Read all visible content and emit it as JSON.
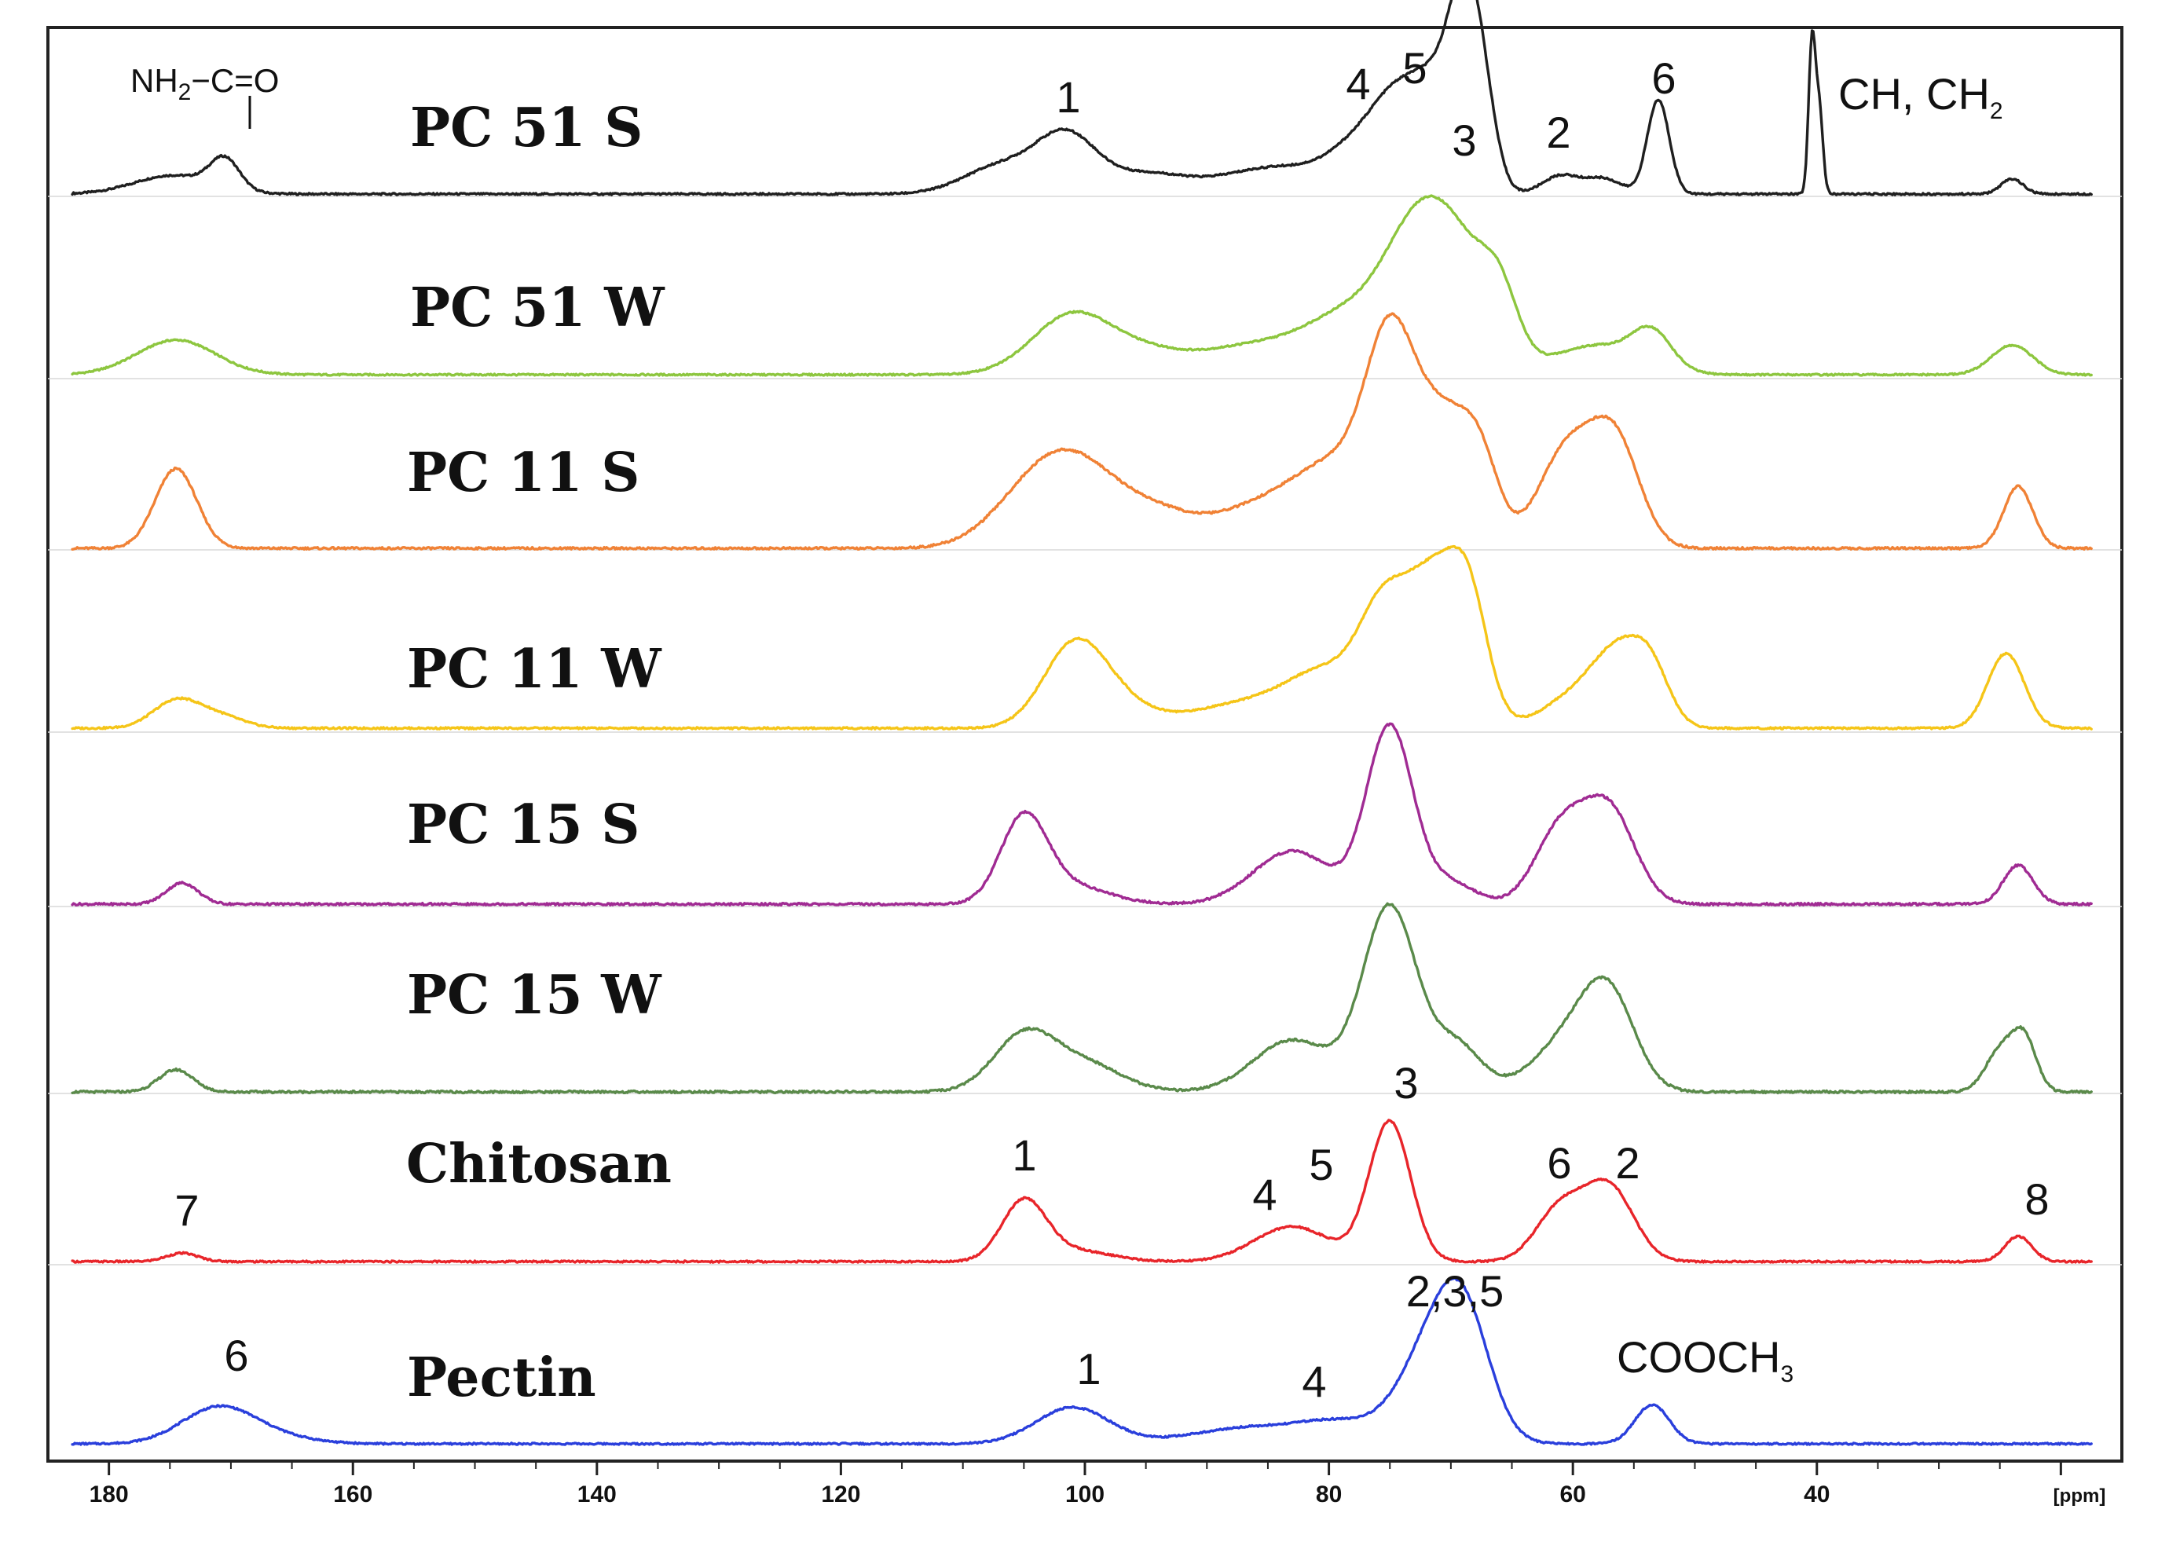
{
  "chart_data": {
    "type": "line",
    "title": "",
    "xlabel": "[ppm]",
    "xlim": [
      185,
      15
    ],
    "x_reversed": true,
    "x_ticks": [
      180,
      160,
      140,
      120,
      100,
      80,
      60,
      40
    ],
    "tick_labels": [
      "180",
      "160",
      "140",
      "120",
      "100",
      "80",
      "60",
      "40"
    ],
    "stacked": true,
    "grid": false,
    "series": [
      {
        "name": "PC 51 S",
        "color": "#1f1f1f",
        "peaks": [
          [
            176,
            0.05,
            3
          ],
          [
            170.5,
            0.2,
            1.2
          ],
          [
            174,
            0.08,
            3
          ],
          [
            107,
            0.18,
            3
          ],
          [
            101.5,
            0.38,
            2.5
          ],
          [
            95,
            0.12,
            3
          ],
          [
            84,
            0.18,
            5
          ],
          [
            77,
            0.3,
            2.5
          ],
          [
            74.5,
            0.38,
            1.8
          ],
          [
            71.5,
            0.62,
            1.8
          ],
          [
            69,
            1.0,
            1.3
          ],
          [
            67.5,
            0.55,
            1.2
          ],
          [
            61,
            0.12,
            1.5
          ],
          [
            57.5,
            0.1,
            1.5
          ],
          [
            53,
            0.62,
            0.9
          ],
          [
            40.4,
            1.0,
            0.28
          ],
          [
            39.8,
            0.55,
            0.3
          ],
          [
            24,
            0.1,
            0.9
          ]
        ],
        "labels": [
          {
            "text": "1",
            "x": 101,
            "key": "l1"
          },
          {
            "text": "4",
            "x": 77,
            "key": "l4"
          },
          {
            "text": "5",
            "x": 72.5,
            "key": "l5"
          },
          {
            "text": "3",
            "x": 68.5,
            "key": "l3"
          },
          {
            "text": "2",
            "x": 60.5,
            "key": "l2"
          },
          {
            "text": "6",
            "x": 53,
            "key": "l6"
          }
        ],
        "extra_labels": {
          "ch_ch2": "CH, CH",
          "ch_ch2_sub": "2",
          "amide_nh": "NH",
          "amide_nh_sub": "2",
          "amide_bond": "−C=O"
        }
      },
      {
        "name": "PC 51 W",
        "color": "#8dc63f",
        "peaks": [
          [
            174.5,
            0.26,
            3.2
          ],
          [
            101,
            0.45,
            3.3
          ],
          [
            95,
            0.12,
            3
          ],
          [
            86,
            0.22,
            5
          ],
          [
            78,
            0.4,
            3.5
          ],
          [
            73.5,
            0.52,
            2.5
          ],
          [
            70,
            1.0,
            3.0
          ],
          [
            66,
            0.4,
            1.5
          ],
          [
            58,
            0.22,
            3.5
          ],
          [
            53.5,
            0.26,
            1.6
          ],
          [
            24,
            0.22,
            1.7
          ]
        ],
        "labels": []
      },
      {
        "name": "PC 11 S",
        "color": "#f08236",
        "peaks": [
          [
            174.5,
            0.45,
            1.7
          ],
          [
            104,
            0.3,
            3.5
          ],
          [
            100,
            0.35,
            3.5
          ],
          [
            94,
            0.14,
            3
          ],
          [
            84,
            0.28,
            5
          ],
          [
            79,
            0.3,
            3
          ],
          [
            75,
            1.0,
            2.0
          ],
          [
            70.5,
            0.72,
            2.5
          ],
          [
            67.5,
            0.3,
            1.5
          ],
          [
            60.5,
            0.55,
            2.3
          ],
          [
            56.5,
            0.58,
            2.0
          ],
          [
            23.5,
            0.35,
            1.2
          ]
        ],
        "labels": []
      },
      {
        "name": "PC 11 W",
        "color": "#f5c518",
        "peaks": [
          [
            174.5,
            0.18,
            1.9
          ],
          [
            171,
            0.08,
            2
          ],
          [
            101,
            0.48,
            2.5
          ],
          [
            98,
            0.18,
            3
          ],
          [
            86,
            0.18,
            5
          ],
          [
            80,
            0.3,
            3
          ],
          [
            75.5,
            0.7,
            2.0
          ],
          [
            71.5,
            0.92,
            2.1
          ],
          [
            68.5,
            0.75,
            1.6
          ],
          [
            59,
            0.25,
            3
          ],
          [
            56,
            0.38,
            2.0
          ],
          [
            53.5,
            0.3,
            1.5
          ],
          [
            24.5,
            0.5,
            1.5
          ]
        ],
        "labels": []
      },
      {
        "name": "PC 15 S",
        "color": "#a02b93",
        "peaks": [
          [
            174,
            0.12,
            1.3
          ],
          [
            105,
            0.48,
            1.9
          ],
          [
            101,
            0.1,
            3
          ],
          [
            83,
            0.3,
            3.2
          ],
          [
            75,
            1.0,
            1.9
          ],
          [
            70,
            0.12,
            2
          ],
          [
            61,
            0.42,
            2.1
          ],
          [
            57,
            0.52,
            2.1
          ],
          [
            23.5,
            0.22,
            1.2
          ]
        ],
        "labels": []
      },
      {
        "name": "PC 15 W",
        "color": "#5a8a4a",
        "peaks": [
          [
            174.5,
            0.12,
            1.4
          ],
          [
            105,
            0.3,
            2.5
          ],
          [
            100,
            0.15,
            3
          ],
          [
            83,
            0.28,
            3.2
          ],
          [
            75,
            1.0,
            2.2
          ],
          [
            69.5,
            0.25,
            2
          ],
          [
            60,
            0.3,
            3
          ],
          [
            57,
            0.42,
            2.1
          ],
          [
            25,
            0.22,
            1.2
          ],
          [
            23,
            0.28,
            1.0
          ]
        ],
        "labels": []
      },
      {
        "name": "Chitosan",
        "color": "#e8252a",
        "peaks": [
          [
            174,
            0.06,
            1.3
          ],
          [
            105,
            0.42,
            1.8
          ],
          [
            101,
            0.08,
            3
          ],
          [
            83,
            0.25,
            3.1
          ],
          [
            75,
            1.0,
            1.7
          ],
          [
            61,
            0.38,
            2.0
          ],
          [
            57,
            0.52,
            2.0
          ],
          [
            23.5,
            0.18,
            1.1
          ]
        ],
        "labels": [
          {
            "text": "7",
            "x": 174,
            "key": "l7"
          },
          {
            "text": "1",
            "x": 105,
            "key": "l1"
          },
          {
            "text": "4",
            "x": 85,
            "key": "l4"
          },
          {
            "text": "5",
            "x": 80,
            "key": "l5"
          },
          {
            "text": "3",
            "x": 74,
            "key": "l3"
          },
          {
            "text": "6",
            "x": 61,
            "key": "l6"
          },
          {
            "text": "2",
            "x": 57.5,
            "key": "l2"
          },
          {
            "text": "8",
            "x": 23.5,
            "key": "l8"
          }
        ]
      },
      {
        "name": "Pectin",
        "color": "#2a3fdc",
        "peaks": [
          [
            171,
            0.26,
            3
          ],
          [
            166,
            0.04,
            3
          ],
          [
            101,
            0.26,
            3
          ],
          [
            86,
            0.12,
            5
          ],
          [
            79,
            0.12,
            3
          ],
          [
            72,
            0.55,
            2.6
          ],
          [
            69,
            0.85,
            2.2
          ],
          [
            53.5,
            0.28,
            1.4
          ]
        ],
        "labels": [
          {
            "text": "6",
            "x": 171,
            "key": "l6"
          },
          {
            "text": "1",
            "x": 100,
            "key": "l1"
          },
          {
            "text": "4",
            "x": 79.5,
            "key": "l4"
          },
          {
            "text": "2,3,5",
            "x": 69.5,
            "key": "l235"
          },
          {
            "text": "COOCH",
            "x": 53,
            "key": "cooch",
            "sub": "3"
          }
        ]
      }
    ]
  }
}
